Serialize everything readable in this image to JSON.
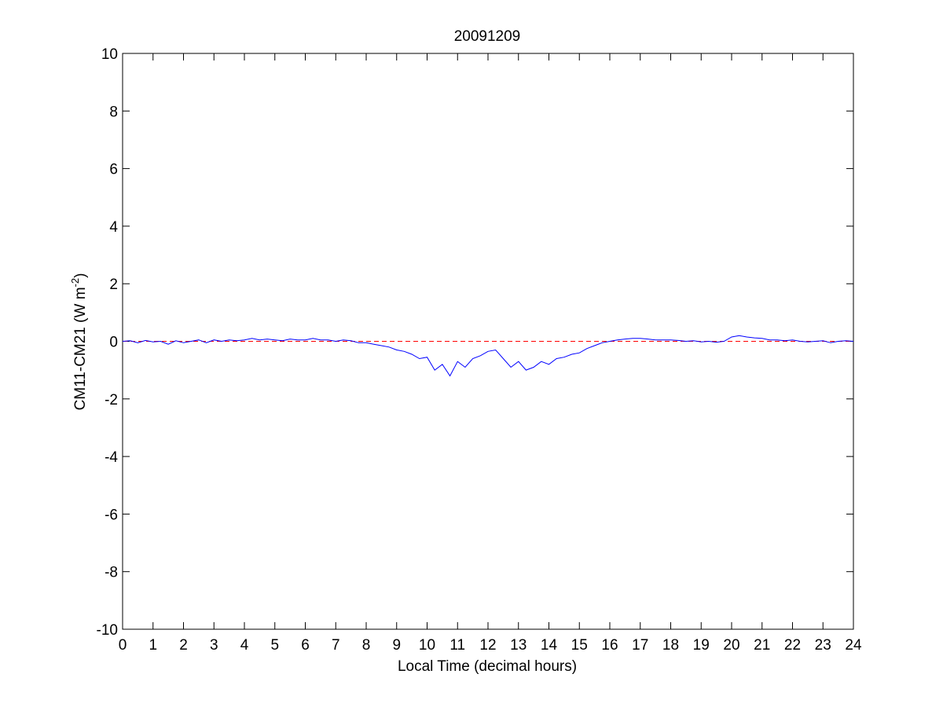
{
  "chart_data": {
    "type": "line",
    "title": "20091209",
    "xlabel": "Local Time (decimal hours)",
    "ylabel_parts": {
      "main": "CM11-CM21 (W m",
      "sup": "-2",
      "close": ")"
    },
    "xlim": [
      0,
      24
    ],
    "ylim": [
      -10,
      10
    ],
    "x_ticks": [
      0,
      1,
      2,
      3,
      4,
      5,
      6,
      7,
      8,
      9,
      10,
      11,
      12,
      13,
      14,
      15,
      16,
      17,
      18,
      19,
      20,
      21,
      22,
      23,
      24
    ],
    "y_ticks": [
      -10,
      -8,
      -6,
      -4,
      -2,
      0,
      2,
      4,
      6,
      8,
      10
    ],
    "grid": false,
    "reference_line": {
      "y": 0,
      "style": "dashed",
      "color": "#ff0000"
    },
    "series": [
      {
        "color": "#0000ff",
        "x": [
          0.0,
          0.25,
          0.5,
          0.75,
          1.0,
          1.25,
          1.5,
          1.75,
          2.0,
          2.25,
          2.5,
          2.75,
          3.0,
          3.25,
          3.5,
          3.75,
          4.0,
          4.25,
          4.5,
          4.75,
          5.0,
          5.25,
          5.5,
          5.75,
          6.0,
          6.25,
          6.5,
          6.75,
          7.0,
          7.25,
          7.5,
          7.75,
          8.0,
          8.25,
          8.5,
          8.75,
          9.0,
          9.25,
          9.5,
          9.75,
          10.0,
          10.25,
          10.5,
          10.75,
          11.0,
          11.25,
          11.5,
          11.75,
          12.0,
          12.25,
          12.5,
          12.75,
          13.0,
          13.25,
          13.5,
          13.75,
          14.0,
          14.25,
          14.5,
          14.75,
          15.0,
          15.25,
          15.5,
          15.75,
          16.0,
          16.25,
          16.5,
          16.75,
          17.0,
          17.25,
          17.5,
          17.75,
          18.0,
          18.25,
          18.5,
          18.75,
          19.0,
          19.25,
          19.5,
          19.75,
          20.0,
          20.25,
          20.5,
          20.75,
          21.0,
          21.25,
          21.5,
          21.75,
          22.0,
          22.25,
          22.5,
          22.75,
          23.0,
          23.25,
          23.5,
          23.75,
          24.0
        ],
        "y": [
          0.0,
          0.02,
          -0.05,
          0.03,
          -0.02,
          0.0,
          -0.1,
          0.02,
          -0.05,
          0.0,
          0.05,
          -0.05,
          0.05,
          0.0,
          0.05,
          0.02,
          0.05,
          0.1,
          0.05,
          0.08,
          0.05,
          0.02,
          0.08,
          0.05,
          0.05,
          0.1,
          0.05,
          0.05,
          0.0,
          0.05,
          0.02,
          -0.05,
          -0.05,
          -0.1,
          -0.15,
          -0.2,
          -0.3,
          -0.35,
          -0.45,
          -0.6,
          -0.55,
          -1.0,
          -0.8,
          -1.2,
          -0.7,
          -0.9,
          -0.6,
          -0.5,
          -0.35,
          -0.3,
          -0.6,
          -0.9,
          -0.7,
          -1.0,
          -0.9,
          -0.7,
          -0.8,
          -0.6,
          -0.55,
          -0.45,
          -0.4,
          -0.25,
          -0.15,
          -0.05,
          0.0,
          0.05,
          0.08,
          0.1,
          0.1,
          0.08,
          0.05,
          0.05,
          0.05,
          0.03,
          0.0,
          0.02,
          -0.02,
          0.0,
          -0.03,
          0.0,
          0.15,
          0.2,
          0.15,
          0.12,
          0.1,
          0.05,
          0.05,
          0.02,
          0.05,
          0.0,
          -0.02,
          0.0,
          0.02,
          -0.05,
          0.0,
          0.02,
          0.0
        ]
      }
    ]
  }
}
